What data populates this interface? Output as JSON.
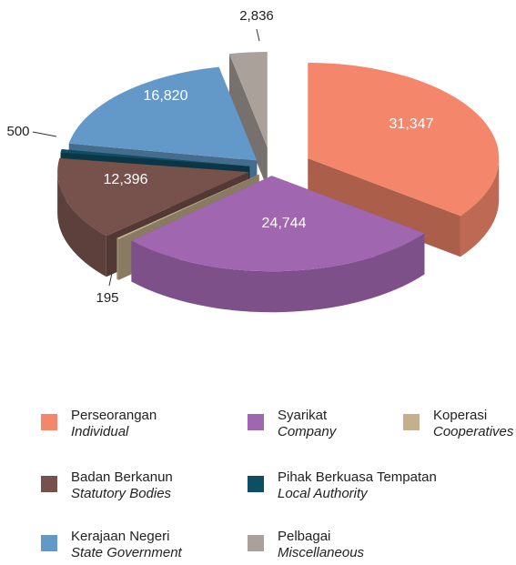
{
  "chart_data": {
    "type": "pie3d",
    "categories": [
      "Perseorangan",
      "Syarikat",
      "Koperasi",
      "Badan Berkanun",
      "Pihak Berkuasa Tempatan",
      "Kerajaan Negeri",
      "Pelbagai"
    ],
    "categories_en": [
      "Individual",
      "Company",
      "Cooperatives",
      "Statutory Bodies",
      "Local Authority",
      "State Government",
      "Miscellaneous"
    ],
    "values": [
      31347,
      24744,
      195,
      12396,
      500,
      16820,
      2836
    ],
    "value_labels": [
      "31,347",
      "24,744",
      "195",
      "12,396",
      "500",
      "16,820",
      "2,836"
    ],
    "colors": [
      "#f4876b",
      "#a066b0",
      "#c4b08c",
      "#77514b",
      "#0f4d63",
      "#6399c9",
      "#aaa19b"
    ]
  }
}
